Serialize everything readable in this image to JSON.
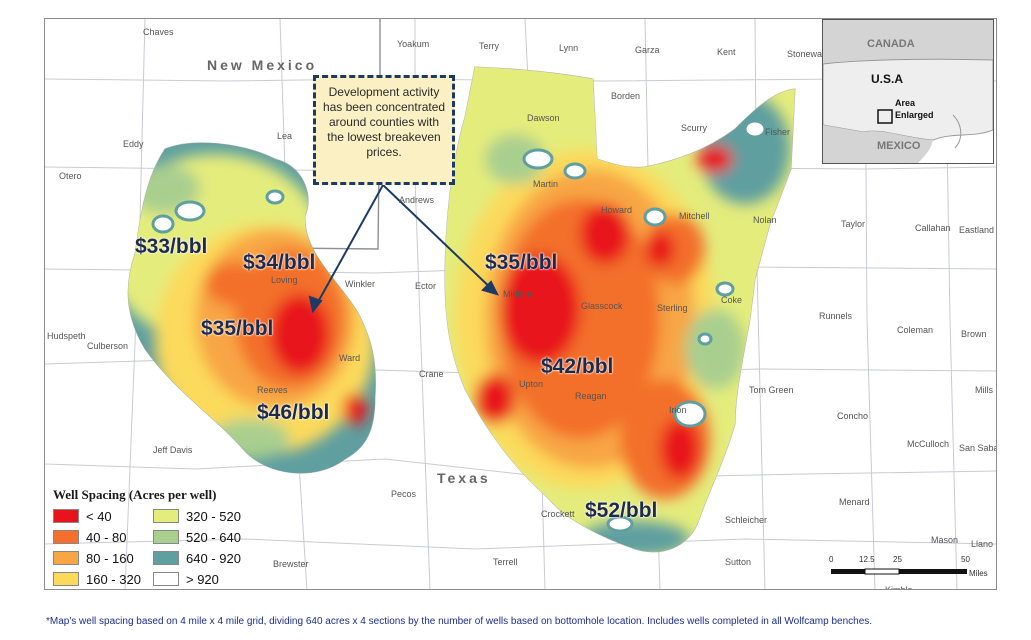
{
  "counties": [
    {
      "name": "Chaves",
      "pos": "chaves"
    },
    {
      "name": "Yoakum",
      "pos": "yoakum"
    },
    {
      "name": "Terry",
      "pos": "terry"
    },
    {
      "name": "Lynn",
      "pos": "lynn"
    },
    {
      "name": "Garza",
      "pos": "garza"
    },
    {
      "name": "Kent",
      "pos": "kent"
    },
    {
      "name": "Stonewall",
      "pos": "stonewall"
    },
    {
      "name": "Borden",
      "pos": "borden"
    },
    {
      "name": "Dawson",
      "pos": "dawson"
    },
    {
      "name": "Scurry",
      "pos": "scurry"
    },
    {
      "name": "Fisher",
      "pos": "fisher"
    },
    {
      "name": "Lea",
      "pos": "lea"
    },
    {
      "name": "Eddy",
      "pos": "eddy"
    },
    {
      "name": "Otero",
      "pos": "otero"
    },
    {
      "name": "Andrews",
      "pos": "andrews"
    },
    {
      "name": "Martin",
      "pos": "martin"
    },
    {
      "name": "Howard",
      "pos": "howard"
    },
    {
      "name": "Mitchell",
      "pos": "mitchell"
    },
    {
      "name": "Nolan",
      "pos": "nolan"
    },
    {
      "name": "Taylor",
      "pos": "taylor"
    },
    {
      "name": "Callahan",
      "pos": "callahan"
    },
    {
      "name": "Eastland",
      "pos": "eastland"
    },
    {
      "name": "Loving",
      "pos": "loving"
    },
    {
      "name": "Winkler",
      "pos": "winkler"
    },
    {
      "name": "Ector",
      "pos": "ector"
    },
    {
      "name": "Midland",
      "pos": "midland"
    },
    {
      "name": "Glasscock",
      "pos": "glasscock"
    },
    {
      "name": "Sterling",
      "pos": "sterling"
    },
    {
      "name": "Coke",
      "pos": "coke"
    },
    {
      "name": "Runnels",
      "pos": "runnels"
    },
    {
      "name": "Coleman",
      "pos": "coleman"
    },
    {
      "name": "Brown",
      "pos": "brown"
    },
    {
      "name": "Hudspeth",
      "pos": "hudspeth"
    },
    {
      "name": "Culberson",
      "pos": "culberson"
    },
    {
      "name": "Ward",
      "pos": "ward"
    },
    {
      "name": "Crane",
      "pos": "crane"
    },
    {
      "name": "Upton",
      "pos": "upton"
    },
    {
      "name": "Reeves",
      "pos": "reeves"
    },
    {
      "name": "Reagan",
      "pos": "reagan"
    },
    {
      "name": "Irion",
      "pos": "irion"
    },
    {
      "name": "Tom Green",
      "pos": "tomgreen"
    },
    {
      "name": "Concho",
      "pos": "concho"
    },
    {
      "name": "McCulloch",
      "pos": "mcculloch"
    },
    {
      "name": "San Saba",
      "pos": "sansaba"
    },
    {
      "name": "Mills",
      "pos": "mills"
    },
    {
      "name": "Jeff Davis",
      "pos": "jeffdavis"
    },
    {
      "name": "Pecos",
      "pos": "pecos"
    },
    {
      "name": "Crockett",
      "pos": "crockett"
    },
    {
      "name": "Schleicher",
      "pos": "schleicher"
    },
    {
      "name": "Menard",
      "pos": "menard"
    },
    {
      "name": "Mason",
      "pos": "mason"
    },
    {
      "name": "Llano",
      "pos": "llano"
    },
    {
      "name": "Brewster",
      "pos": "brewster"
    },
    {
      "name": "Terrell",
      "pos": "terrell"
    },
    {
      "name": "Sutton",
      "pos": "sutton"
    },
    {
      "name": "Kimble",
      "pos": "kimble"
    }
  ],
  "states": {
    "new_mexico": "New Mexico",
    "texas": "Texas"
  },
  "prices": [
    {
      "label": "$33/bbl",
      "pos": "p33"
    },
    {
      "label": "$34/bbl",
      "pos": "p34"
    },
    {
      "label": "$35/bbl",
      "pos": "p35w"
    },
    {
      "label": "$46/bbl",
      "pos": "p46"
    },
    {
      "label": "$35/bbl",
      "pos": "p35m"
    },
    {
      "label": "$42/bbl",
      "pos": "p42"
    },
    {
      "label": "$52/bbl",
      "pos": "p52"
    }
  ],
  "callout": "Development activity has been concentrated around counties with the lowest breakeven prices.",
  "legend": {
    "title": "Well Spacing (Acres per well)",
    "items": [
      {
        "label": "< 40",
        "color": "#e8141c"
      },
      {
        "label": "40 - 80",
        "color": "#f36f2b"
      },
      {
        "label": "80 - 160",
        "color": "#f8a645"
      },
      {
        "label": "160 - 320",
        "color": "#fbda5b"
      },
      {
        "label": "320 - 520",
        "color": "#e4ec7c"
      },
      {
        "label": "520 - 640",
        "color": "#a9cf8f"
      },
      {
        "label": "640 - 920",
        "color": "#5f9fa0"
      },
      {
        "label": "> 920",
        "color": "#ffffff"
      }
    ]
  },
  "inset": {
    "canada": "CANADA",
    "usa": "U.S.A",
    "mexico": "MEXICO",
    "area": "Area",
    "enlarged": "Enlarged"
  },
  "scale": {
    "ticks": [
      "0",
      "12.5",
      "25",
      "50"
    ],
    "unit": "Miles"
  },
  "footnote": "*Map's well spacing based on 4 mile x 4 mile grid, dividing 640 acres x 4 sections by the number of wells based on bottomhole location. Includes wells completed in all Wolfcamp benches."
}
